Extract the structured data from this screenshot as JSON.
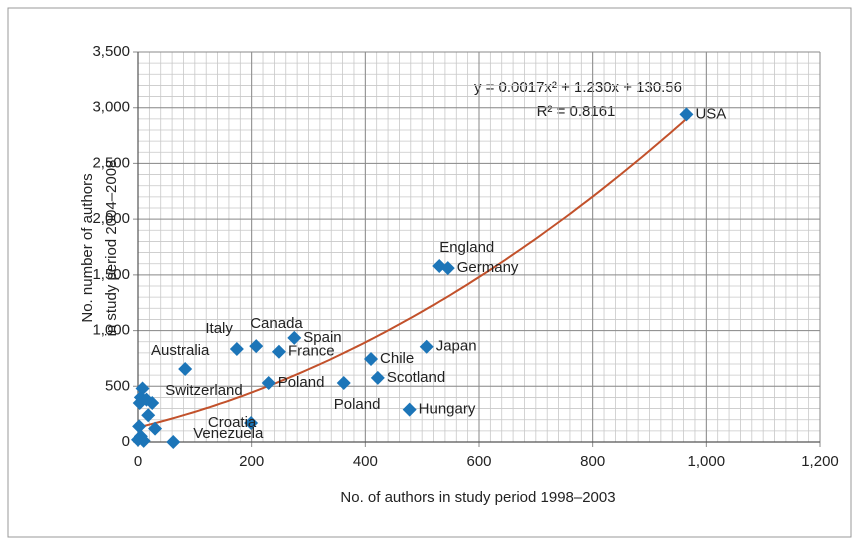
{
  "chart_data": {
    "type": "scatter",
    "xlabel": "No. of authors in study period 1998–2003",
    "ylabel": [
      "No. number of authors",
      "in study period 2004–2008"
    ],
    "x": [
      965,
      530,
      545,
      508,
      410,
      422,
      478,
      362,
      275,
      208,
      174,
      248,
      230,
      83,
      25,
      199,
      62,
      8,
      5,
      15,
      3,
      18,
      2,
      30,
      5,
      0,
      10
    ],
    "values": [
      2940,
      1580,
      1560,
      855,
      745,
      575,
      290,
      530,
      935,
      860,
      835,
      810,
      530,
      655,
      350,
      170,
      0,
      480,
      400,
      380,
      350,
      240,
      140,
      120,
      50,
      20,
      10
    ],
    "point_labels": [
      "USA",
      "England",
      "Germany",
      "Japan",
      "Chile",
      "Scotland",
      "Hungary",
      "Poland",
      "Spain",
      "Canada",
      "Italy",
      "France",
      "Poland",
      "Australia",
      "Switzerland",
      "Croatia",
      "Venezuela",
      null,
      null,
      null,
      null,
      null,
      null,
      null,
      null,
      null,
      null
    ],
    "color": "#1c75b8",
    "trendline": {
      "coefficients": [
        0.0017,
        1.23,
        130.56
      ],
      "x_range": [
        0,
        965
      ],
      "color": "#c2512b",
      "equation": "y = 0.0017x² + 1.230x + 130.56",
      "r2_label": "R² = 0.8161"
    },
    "xlim": [
      0,
      1200
    ],
    "xticks": [
      0,
      200,
      400,
      600,
      800,
      {
        "value": 1000,
        "label": "1,000"
      },
      {
        "value": 1200,
        "label": "1,200"
      }
    ],
    "ylim": [
      0,
      3500
    ],
    "yticks": [
      0,
      500,
      {
        "value": 1000,
        "label": "1,000"
      },
      {
        "value": 1500,
        "label": "1,500"
      },
      {
        "value": 2000,
        "label": "2,000"
      },
      {
        "value": 2500,
        "label": "2,500"
      },
      {
        "value": 3000,
        "label": "3,000"
      },
      {
        "value": 3500,
        "label": "3,500"
      }
    ],
    "grid": true,
    "minor_grid_step": {
      "x": 20,
      "y": 100
    }
  }
}
